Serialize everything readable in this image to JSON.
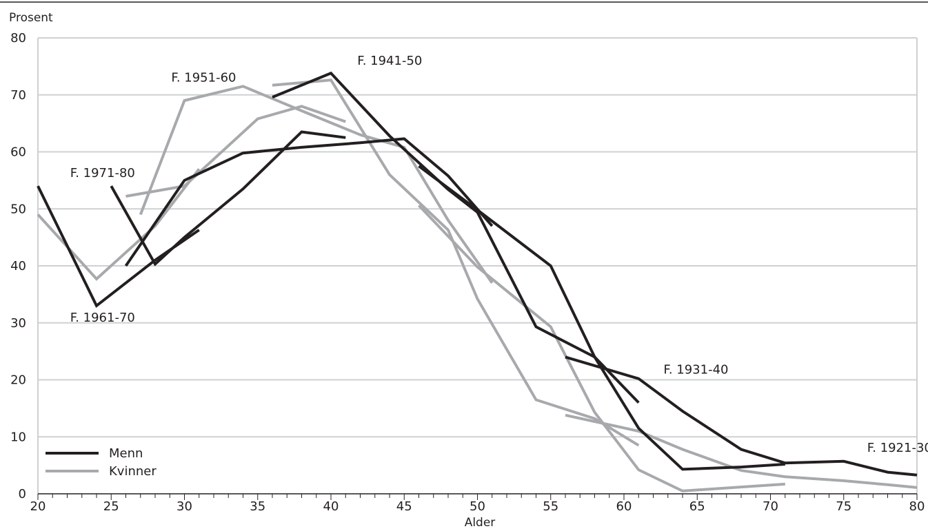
{
  "chart_data": {
    "type": "line",
    "ylabel": "Prosent",
    "xlabel": "Alder",
    "xlim": [
      20,
      80
    ],
    "ylim": [
      0,
      80
    ],
    "xticks": [
      20,
      25,
      30,
      35,
      40,
      45,
      50,
      55,
      60,
      65,
      70,
      75,
      80
    ],
    "yticks": [
      0,
      10,
      20,
      30,
      40,
      50,
      60,
      70,
      80
    ],
    "grid": "horizontal",
    "legend": {
      "position": "bottom-left",
      "entries": [
        {
          "label": "Menn",
          "color": "#231f20"
        },
        {
          "label": "Kvinner",
          "color": "#a7a9ac"
        }
      ]
    },
    "colors": {
      "men": "#231f20",
      "women": "#a7a9ac",
      "grid": "#cfd0d2"
    },
    "annotations": [
      {
        "text": "F. 1971-80",
        "x": 22.2,
        "y": 55.6
      },
      {
        "text": "F. 1961-70",
        "x": 22.2,
        "y": 30.2
      },
      {
        "text": "F. 1951-60",
        "x": 29.1,
        "y": 72.3
      },
      {
        "text": "F. 1941-50",
        "x": 41.8,
        "y": 75.3
      },
      {
        "text": "F. 1931-40",
        "x": 62.7,
        "y": 21.1
      },
      {
        "text": "F. 1921-30",
        "x": 76.6,
        "y": 7.4
      }
    ],
    "series": [
      {
        "group": "Menn",
        "cohort": "F. 1971-80",
        "x": [
          20,
          24,
          28,
          31
        ],
        "y": [
          54,
          33,
          41,
          46.3
        ]
      },
      {
        "group": "Kvinner",
        "cohort": "F. 1971-80",
        "x": [
          20,
          24,
          28,
          31
        ],
        "y": [
          49,
          37.7,
          47,
          57
        ]
      },
      {
        "group": "Menn",
        "cohort": "F. 1961-70",
        "x": [
          25,
          28,
          30,
          34,
          38,
          41
        ],
        "y": [
          54,
          40.3,
          45,
          53.5,
          63.5,
          62.5
        ]
      },
      {
        "group": "Kvinner",
        "cohort": "F. 1961-70",
        "x": [
          26,
          30,
          35,
          38,
          41
        ],
        "y": [
          52.2,
          54,
          65.8,
          68,
          65.3
        ]
      },
      {
        "group": "Menn",
        "cohort": "F. 1951-60",
        "x": [
          26,
          30,
          34,
          38,
          42,
          45,
          48,
          51
        ],
        "y": [
          40,
          55,
          59.8,
          60.8,
          61.6,
          62.3,
          55.8,
          47
        ]
      },
      {
        "group": "Kvinner",
        "cohort": "F. 1951-60",
        "x": [
          27,
          30,
          34,
          38,
          42,
          45,
          48,
          51
        ],
        "y": [
          49,
          69,
          71.5,
          67.2,
          63,
          60.8,
          48,
          37
        ]
      },
      {
        "group": "Menn",
        "cohort": "F. 1941-50",
        "x": [
          36,
          40,
          44,
          48,
          50,
          54,
          58,
          61
        ],
        "y": [
          69.6,
          73.8,
          62.8,
          53.4,
          49.4,
          29.3,
          24,
          16
        ]
      },
      {
        "group": "Kvinner",
        "cohort": "F. 1941-50",
        "x": [
          36,
          40,
          44,
          48,
          50,
          54,
          58,
          61
        ],
        "y": [
          71.7,
          72.6,
          56,
          46.3,
          34.2,
          16.5,
          13.2,
          8.5
        ]
      },
      {
        "group": "Menn",
        "cohort": "F. 1931-40",
        "x": [
          46,
          50,
          55,
          58,
          61,
          64,
          68,
          71
        ],
        "y": [
          57.5,
          49.8,
          40,
          24,
          11.5,
          4.3,
          4.7,
          5.2
        ]
      },
      {
        "group": "Kvinner",
        "cohort": "F. 1931-40",
        "x": [
          46,
          50,
          55,
          58,
          61,
          64,
          68,
          71
        ],
        "y": [
          50.6,
          39.8,
          29.3,
          14.3,
          4.2,
          0.5,
          1.2,
          1.7
        ]
      },
      {
        "group": "Menn",
        "cohort": "F. 1921-30",
        "x": [
          56,
          61,
          64,
          68,
          71,
          75,
          78,
          80
        ],
        "y": [
          24,
          20.2,
          14.5,
          7.8,
          5.4,
          5.7,
          3.8,
          3.3
        ]
      },
      {
        "group": "Kvinner",
        "cohort": "F. 1921-30",
        "x": [
          56,
          61,
          64,
          68,
          71,
          75,
          78,
          80
        ],
        "y": [
          13.8,
          11,
          7.8,
          4.1,
          3,
          2.3,
          1.6,
          1.1
        ]
      }
    ]
  }
}
